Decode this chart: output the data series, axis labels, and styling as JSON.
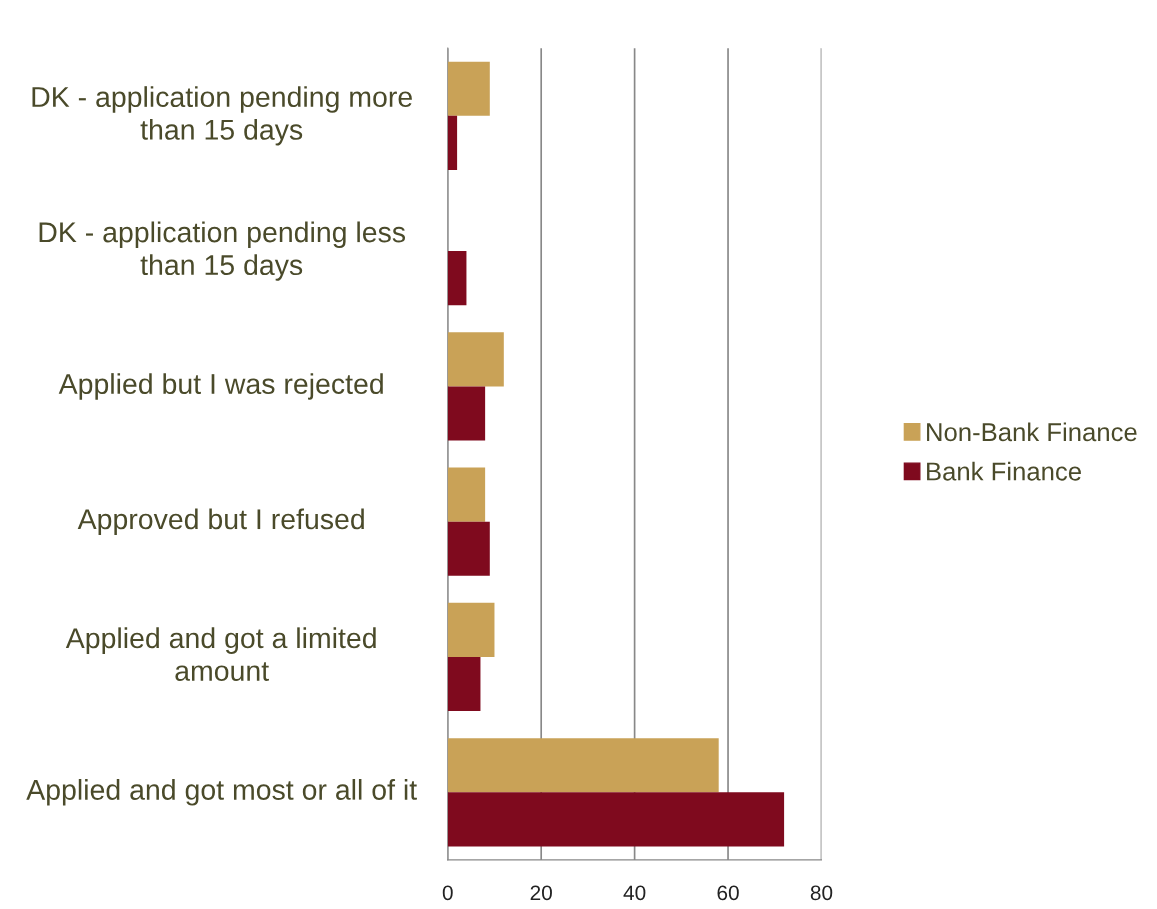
{
  "chart_data": {
    "type": "bar",
    "orientation": "horizontal",
    "categories": [
      "DK - application pending more than 15 days",
      "DK - application pending less than 15 days",
      "Applied but I was rejected",
      "Approved but I refused",
      "Applied and got a limited amount",
      "Applied and got most or all of it"
    ],
    "series": [
      {
        "name": "Non-Bank Finance",
        "color": "#c9a257",
        "values": [
          9,
          0,
          12,
          8,
          10,
          58
        ]
      },
      {
        "name": "Bank Finance",
        "color": "#7f0a1e",
        "values": [
          2,
          4,
          8,
          9,
          7,
          72
        ]
      }
    ],
    "xlim": [
      0,
      80
    ],
    "xticks": [
      0,
      20,
      40,
      60,
      80
    ],
    "grid": "x",
    "legend": "right"
  }
}
